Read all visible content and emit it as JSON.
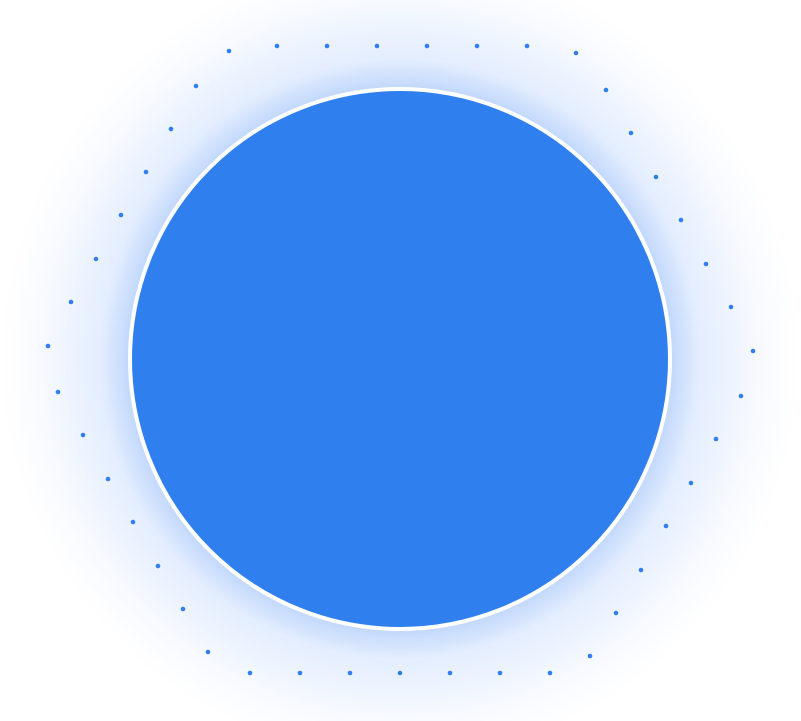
{
  "colors": {
    "circle_fill": "#2f7fef",
    "circle_border": "#ffffff",
    "dot": "#2f7fef",
    "glow": "#3b82f6",
    "background": "#ffffff"
  },
  "icon": "blue-circle-with-dotted-hexagon"
}
